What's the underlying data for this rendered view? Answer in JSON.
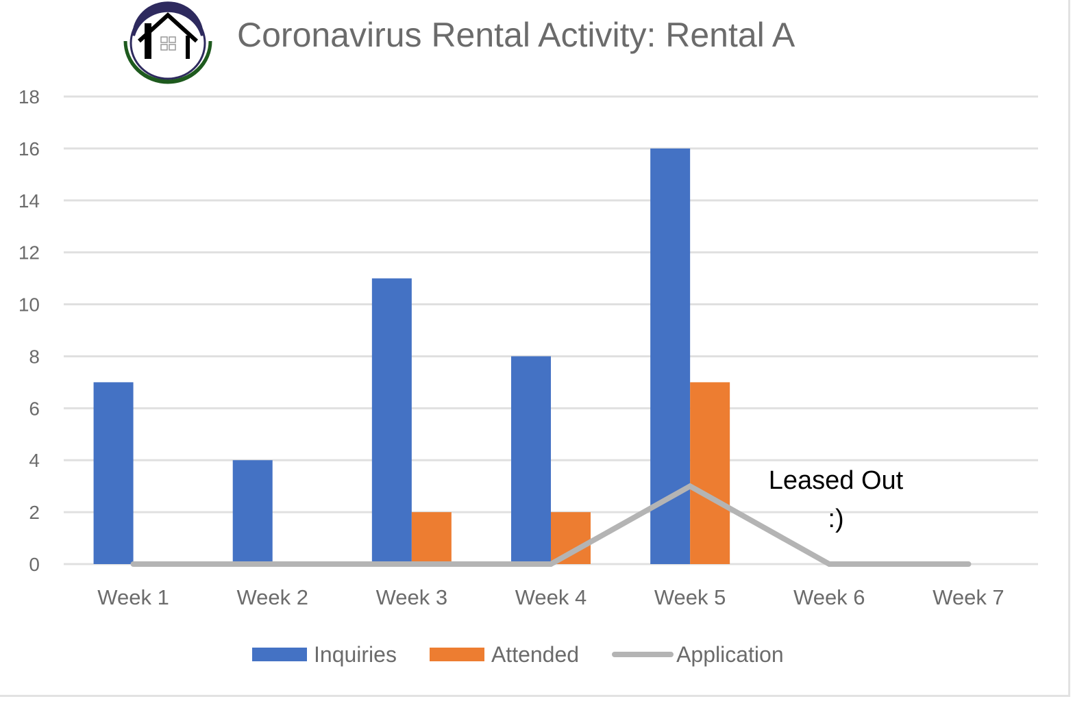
{
  "title": "Coronavirus Rental Activity: Rental A",
  "logo": {
    "icon": "house-logo-icon",
    "colors": {
      "ring_top": "#2e2a5e",
      "ring_bottom": "#1e5a1e",
      "house": "#000000"
    }
  },
  "colors": {
    "inquiries": "#4472c4",
    "attended": "#ed7d31",
    "application": "#b4b4b4",
    "grid": "#e0e0e0",
    "text": "#6b6b6b"
  },
  "legend": {
    "items": [
      {
        "label": "Inquiries",
        "type": "bar",
        "color": "#4472c4"
      },
      {
        "label": "Attended",
        "type": "bar",
        "color": "#ed7d31"
      },
      {
        "label": "Application",
        "type": "line",
        "color": "#b4b4b4"
      }
    ]
  },
  "annotation": {
    "line1": "Leased Out",
    "line2": ":)"
  },
  "chart_data": {
    "type": "bar",
    "title": "Coronavirus Rental Activity: Rental A",
    "xlabel": "",
    "ylabel": "",
    "categories": [
      "Week 1",
      "Week 2",
      "Week 3",
      "Week 4",
      "Week 5",
      "Week 6",
      "Week 7"
    ],
    "series": [
      {
        "name": "Inquiries",
        "type": "bar",
        "color": "#4472c4",
        "values": [
          7,
          4,
          11,
          8,
          16,
          0,
          0
        ]
      },
      {
        "name": "Attended",
        "type": "bar",
        "color": "#ed7d31",
        "values": [
          0,
          0,
          2,
          2,
          7,
          0,
          0
        ]
      },
      {
        "name": "Application",
        "type": "line",
        "color": "#b4b4b4",
        "values": [
          0,
          0,
          0,
          0,
          3,
          0,
          0
        ]
      }
    ],
    "ylim": [
      0,
      18
    ],
    "yticks": [
      0,
      2,
      4,
      6,
      8,
      10,
      12,
      14,
      16,
      18
    ],
    "grid": true,
    "legend_position": "bottom",
    "annotations": [
      {
        "text": "Leased Out :)",
        "near": "Week 6"
      }
    ]
  }
}
